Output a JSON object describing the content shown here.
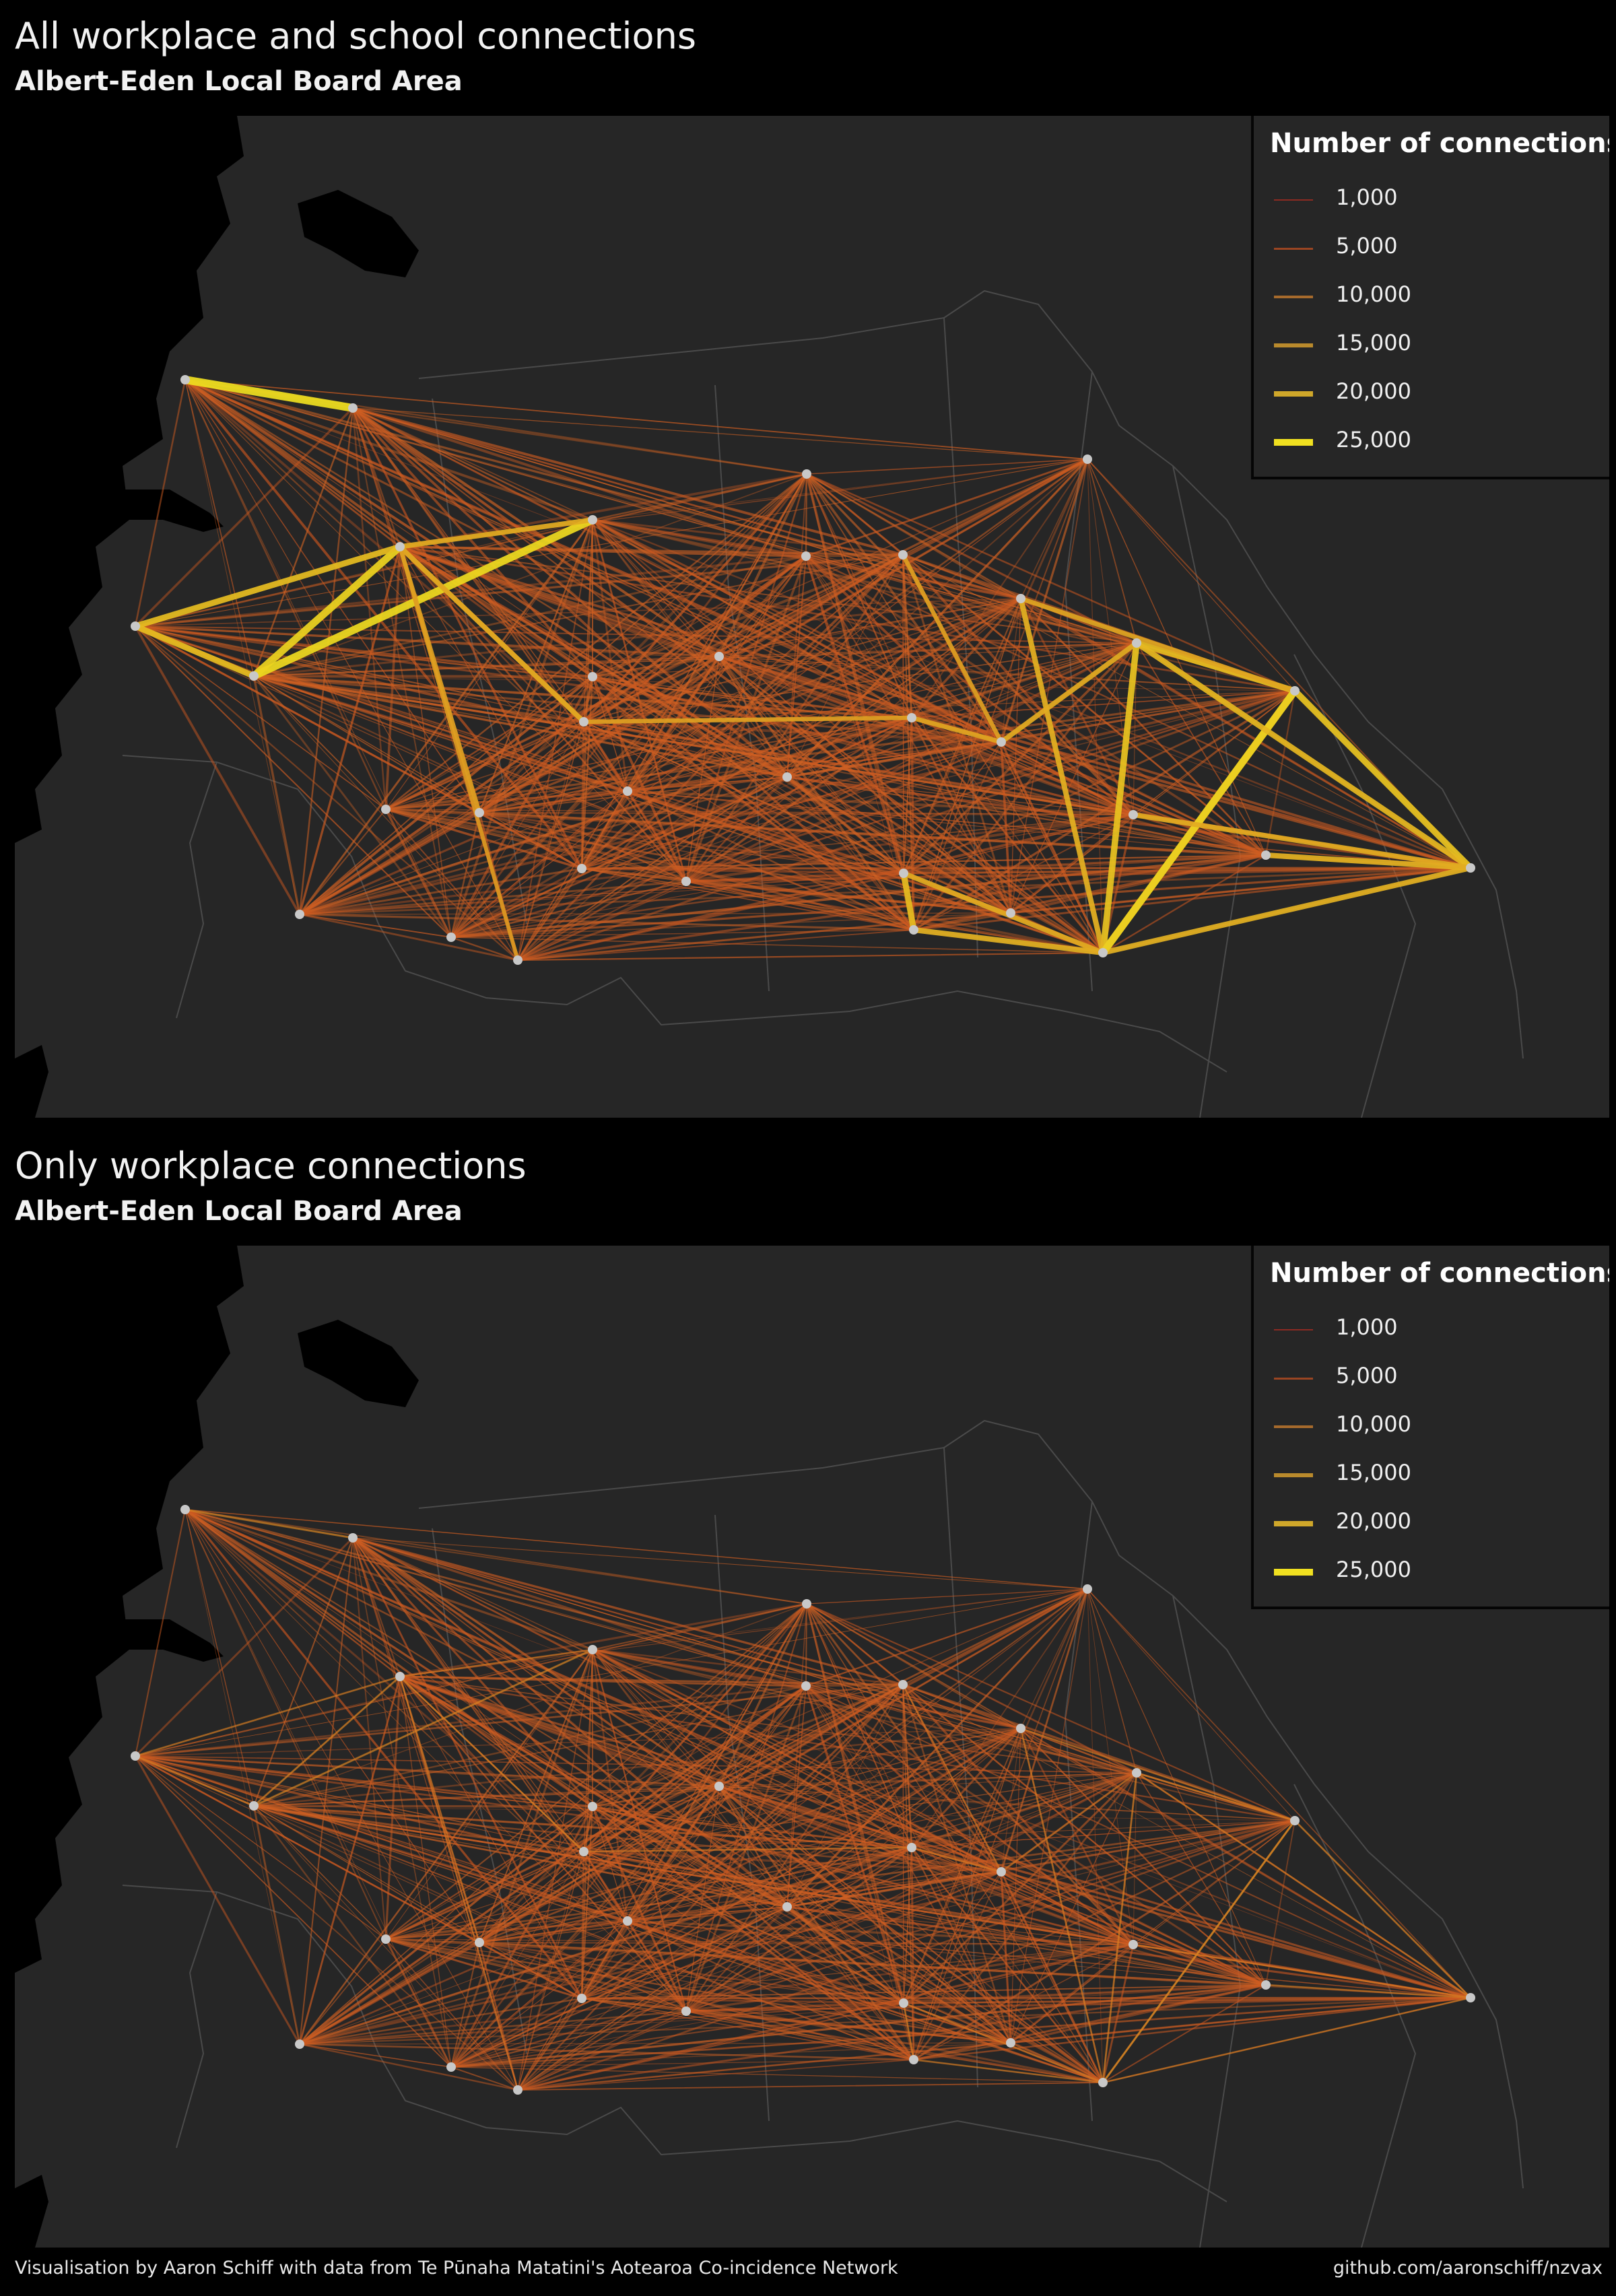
{
  "panels": [
    {
      "title": "All workplace and school connections",
      "subtitle": "Albert-Eden Local Board Area",
      "mode": "all",
      "legend_title": "Number of connections"
    },
    {
      "title": "Only workplace connections",
      "subtitle": "Albert-Eden Local Board Area",
      "mode": "workplace",
      "legend_title": "Number of connections"
    }
  ],
  "legend_items": [
    {
      "label": "1,000",
      "value": 1000,
      "color": "#8c2a22"
    },
    {
      "label": "5,000",
      "value": 5000,
      "color": "#9a4522"
    },
    {
      "label": "10,000",
      "value": 10000,
      "color": "#a66a2c"
    },
    {
      "label": "15,000",
      "value": 15000,
      "color": "#b98a2c"
    },
    {
      "label": "20,000",
      "value": 20000,
      "color": "#cfa72a"
    },
    {
      "label": "25,000",
      "value": 25000,
      "color": "#f0e020"
    }
  ],
  "colors": {
    "background": "#000000",
    "map_fill": "#262626",
    "boundary_stroke": "#4a4a4a",
    "node_fill": "#c8c8c8",
    "edge_base": "#c8501e",
    "edge_high": "#f0e020"
  },
  "footer": {
    "credit": "Visualisation by Aaron Schiff with data from Te Pūnaha Matatini's Aotearoa Co-incidence Network",
    "link": "github.com/aaronschiff/nzvax"
  }
}
